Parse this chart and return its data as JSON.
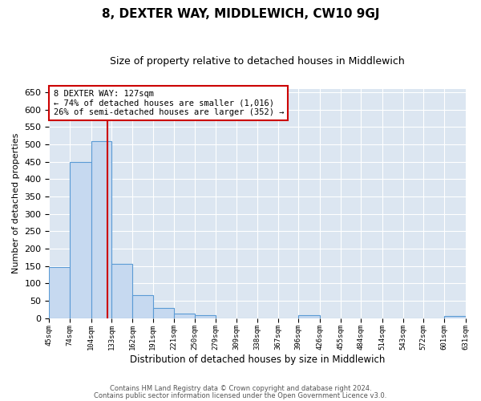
{
  "title": "8, DEXTER WAY, MIDDLEWICH, CW10 9GJ",
  "subtitle": "Size of property relative to detached houses in Middlewich",
  "xlabel": "Distribution of detached houses by size in Middlewich",
  "ylabel": "Number of detached properties",
  "bar_edges": [
    45,
    74,
    104,
    133,
    162,
    191,
    221,
    250,
    279,
    309,
    338,
    367,
    396,
    426,
    455,
    484,
    514,
    543,
    572,
    601,
    631
  ],
  "bar_heights": [
    147,
    449,
    508,
    157,
    66,
    30,
    13,
    8,
    0,
    0,
    0,
    0,
    8,
    0,
    0,
    0,
    0,
    0,
    0,
    5
  ],
  "bar_color": "#c6d9f0",
  "bar_edge_color": "#5b9bd5",
  "vline_x": 127,
  "vline_color": "#cc0000",
  "ylim": [
    0,
    660
  ],
  "yticks": [
    0,
    50,
    100,
    150,
    200,
    250,
    300,
    350,
    400,
    450,
    500,
    550,
    600,
    650
  ],
  "annotation_title": "8 DEXTER WAY: 127sqm",
  "annotation_line1": "← 74% of detached houses are smaller (1,016)",
  "annotation_line2": "26% of semi-detached houses are larger (352) →",
  "annotation_box_color": "#ffffff",
  "annotation_box_edge_color": "#cc0000",
  "footnote1": "Contains HM Land Registry data © Crown copyright and database right 2024.",
  "footnote2": "Contains public sector information licensed under the Open Government Licence v3.0.",
  "background_color": "#ffffff",
  "plot_bg_color": "#dce6f1",
  "grid_color": "#ffffff",
  "tick_labels": [
    "45sqm",
    "74sqm",
    "104sqm",
    "133sqm",
    "162sqm",
    "191sqm",
    "221sqm",
    "250sqm",
    "279sqm",
    "309sqm",
    "338sqm",
    "367sqm",
    "396sqm",
    "426sqm",
    "455sqm",
    "484sqm",
    "514sqm",
    "543sqm",
    "572sqm",
    "601sqm",
    "631sqm"
  ]
}
